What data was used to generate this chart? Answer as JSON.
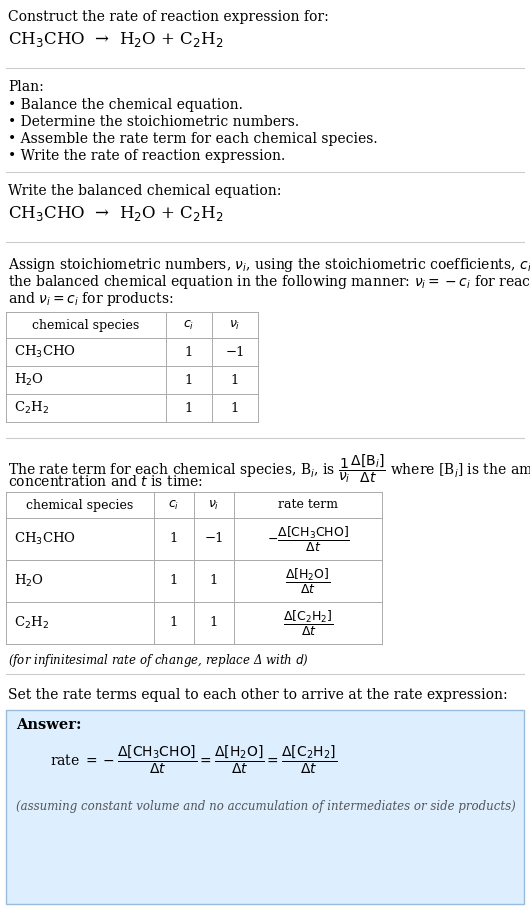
{
  "bg_color": "#ffffff",
  "title_line1": "Construct the rate of reaction expression for:",
  "title_eq": "CH$_3$CHO  →  H$_2$O + C$_2$H$_2$",
  "plan_header": "Plan:",
  "plan_items": [
    "• Balance the chemical equation.",
    "• Determine the stoichiometric numbers.",
    "• Assemble the rate term for each chemical species.",
    "• Write the rate of reaction expression."
  ],
  "balanced_header": "Write the balanced chemical equation:",
  "balanced_eq": "CH$_3$CHO  →  H$_2$O + C$_2$H$_2$",
  "stoich_intro_parts": [
    "Assign stoichiometric numbers, $\\nu_i$, using the stoichiometric coefficients, $c_i$, from",
    "the balanced chemical equation in the following manner: $\\nu_i = -c_i$ for reactants",
    "and $\\nu_i = c_i$ for products:"
  ],
  "table1_headers": [
    "chemical species",
    "$c_i$",
    "$\\nu_i$"
  ],
  "table1_rows": [
    [
      "CH$_3$CHO",
      "1",
      "−1"
    ],
    [
      "H$_2$O",
      "1",
      "1"
    ],
    [
      "C$_2$H$_2$",
      "1",
      "1"
    ]
  ],
  "rate_intro_line1": "The rate term for each chemical species, B$_i$, is $\\dfrac{1}{\\nu_i}\\dfrac{\\Delta[\\mathrm{B}_i]}{\\Delta t}$ where [B$_i$] is the amount",
  "rate_intro_line2": "concentration and $t$ is time:",
  "table2_headers": [
    "chemical species",
    "$c_i$",
    "$\\nu_i$",
    "rate term"
  ],
  "table2_rows": [
    [
      "CH$_3$CHO",
      "1",
      "−1",
      "$-\\dfrac{\\Delta[\\mathrm{CH_3CHO}]}{\\Delta t}$"
    ],
    [
      "H$_2$O",
      "1",
      "1",
      "$\\dfrac{\\Delta[\\mathrm{H_2O}]}{\\Delta t}$"
    ],
    [
      "C$_2$H$_2$",
      "1",
      "1",
      "$\\dfrac{\\Delta[\\mathrm{C_2H_2}]}{\\Delta t}$"
    ]
  ],
  "infinitesimal_note": "(for infinitesimal rate of change, replace Δ with $d$)",
  "set_equal_text": "Set the rate terms equal to each other to arrive at the rate expression:",
  "answer_box_color": "#ddeeff",
  "answer_box_edge": "#99bbdd",
  "answer_label": "Answer:",
  "answer_rate_eq": "rate $= -\\dfrac{\\Delta[\\mathrm{CH_3CHO}]}{\\Delta t} = \\dfrac{\\Delta[\\mathrm{H_2O}]}{\\Delta t} = \\dfrac{\\Delta[\\mathrm{C_2H_2}]}{\\Delta t}$",
  "answer_note": "(assuming constant volume and no accumulation of intermediates or side products)",
  "divider_color": "#cccccc",
  "table_line_color": "#aaaaaa",
  "text_color": "#000000",
  "note_color": "#555555"
}
